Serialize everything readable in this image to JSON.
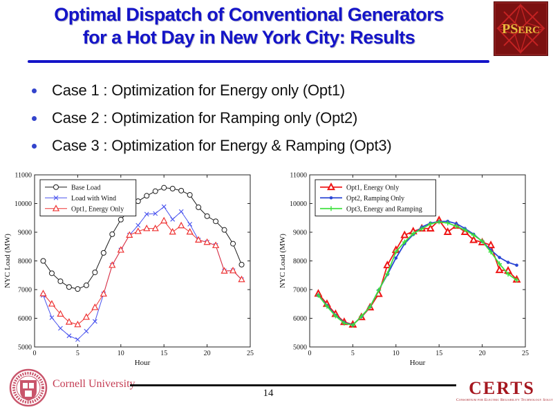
{
  "header": {
    "title_line1": "Optimal Dispatch of Conventional Generators",
    "title_line2": "for a Hot Day in New York City: Results",
    "pserc_ps": "PS",
    "pserc_erc": "ERC"
  },
  "bullets": [
    {
      "text": "Case 1 : Optimization for Energy only (Opt1)"
    },
    {
      "text": "Case 2 : Optimization for Ramping only (Opt2)"
    },
    {
      "text": "Case 3 : Optimization for Energy & Ramping (Opt3)"
    }
  ],
  "chart_data": [
    {
      "type": "line",
      "xlabel": "Hour",
      "ylabel": "NYC Load (MW)",
      "xlim": [
        0,
        25
      ],
      "ylim": [
        5000,
        11000
      ],
      "xticks": [
        0,
        5,
        10,
        15,
        20,
        25
      ],
      "yticks": [
        5000,
        6000,
        7000,
        8000,
        9000,
        10000,
        11000
      ],
      "grid": false,
      "legend_position": "top-left",
      "linewidth": 1,
      "x": [
        1,
        2,
        3,
        4,
        5,
        6,
        7,
        8,
        9,
        10,
        11,
        12,
        13,
        14,
        15,
        16,
        17,
        18,
        19,
        20,
        21,
        22,
        23,
        24
      ],
      "series": [
        {
          "name": "Base Load",
          "color": "#1a1a1a",
          "marker": "circle-open",
          "values": [
            8000,
            7570,
            7290,
            7090,
            7020,
            7150,
            7600,
            8280,
            8930,
            9440,
            9790,
            10080,
            10270,
            10430,
            10550,
            10520,
            10450,
            10300,
            9870,
            9560,
            9380,
            9080,
            8600,
            7870
          ]
        },
        {
          "name": "Load with Wind",
          "color": "#4852ee",
          "marker": "x",
          "values": [
            6800,
            6020,
            5650,
            5390,
            5260,
            5550,
            5890,
            6850,
            7850,
            8380,
            8900,
            9240,
            9630,
            9650,
            9890,
            9450,
            9720,
            9280,
            8730,
            8650,
            8540,
            7650,
            7660,
            7350
          ]
        },
        {
          "name": "Opt1, Energy Only",
          "color": "#ee3030",
          "marker": "triangle-open",
          "values": [
            6860,
            6500,
            6150,
            5870,
            5780,
            6040,
            6380,
            6850,
            7850,
            8380,
            8900,
            9030,
            9130,
            9130,
            9400,
            9010,
            9230,
            9010,
            8730,
            8650,
            8540,
            7650,
            7660,
            7350
          ]
        }
      ]
    },
    {
      "type": "line",
      "xlabel": "Hour",
      "ylabel": "NYC Load (MW)",
      "xlim": [
        0,
        25
      ],
      "ylim": [
        5000,
        11000
      ],
      "xticks": [
        0,
        5,
        10,
        15,
        20,
        25
      ],
      "yticks": [
        5000,
        6000,
        7000,
        8000,
        9000,
        10000,
        11000
      ],
      "grid": false,
      "legend_position": "top-left",
      "linewidth": 1.8,
      "x": [
        1,
        2,
        3,
        4,
        5,
        6,
        7,
        8,
        9,
        10,
        11,
        12,
        13,
        14,
        15,
        16,
        17,
        18,
        19,
        20,
        21,
        22,
        23,
        24
      ],
      "series": [
        {
          "name": "Opt1, Energy Only",
          "color": "#ee1515",
          "marker": "triangle-filled",
          "values": [
            6860,
            6500,
            6150,
            5870,
            5780,
            6040,
            6380,
            6850,
            7850,
            8380,
            8900,
            9030,
            9130,
            9130,
            9420,
            9010,
            9230,
            9010,
            8730,
            8650,
            8550,
            7680,
            7660,
            7350
          ]
        },
        {
          "name": "Opt2, Ramping Only",
          "color": "#2a46d4",
          "marker": "dot",
          "values": [
            6800,
            6450,
            6100,
            5850,
            5770,
            6060,
            6400,
            6980,
            7520,
            8100,
            8600,
            8920,
            9180,
            9320,
            9370,
            9380,
            9300,
            9130,
            8930,
            8680,
            8380,
            8120,
            7950,
            7850
          ]
        },
        {
          "name": "Opt3, Energy and Ramping",
          "color": "#3ce03c",
          "marker": "plus",
          "values": [
            6800,
            6420,
            6080,
            5830,
            5760,
            6070,
            6400,
            6980,
            7550,
            8320,
            8660,
            8950,
            9120,
            9290,
            9360,
            9320,
            9210,
            9080,
            8900,
            8690,
            8310,
            7900,
            7540,
            7330
          ]
        }
      ]
    }
  ],
  "footer": {
    "cornell_label": "Cornell University",
    "page_number": "14",
    "certs_word": "CERTS",
    "certs_subtitle": "Consortium for Electric Reliability Technology Solutions"
  },
  "colors": {
    "title-blue": "#1414c8",
    "bullet-blue": "#3344cc",
    "pserc-bg": "#7b1111",
    "pserc-gold": "#e8b93e",
    "pserc-star": "#c32222",
    "cornell-red": "#c43b52",
    "certs-red": "#a5171f"
  }
}
